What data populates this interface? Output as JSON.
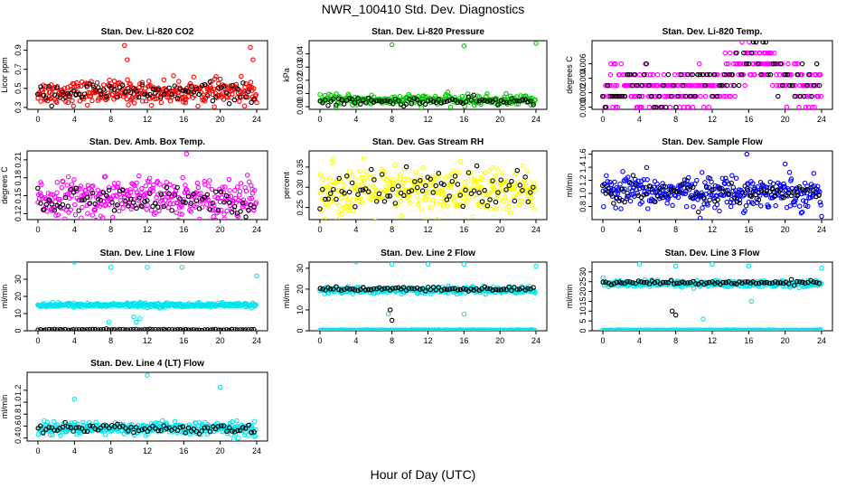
{
  "title": "NWR_100410  Std. Dev. Diagnostics",
  "xlabel": "Hour of Day (UTC)",
  "colors": {
    "red": "#ff0000",
    "green": "#00cc00",
    "magenta": "#ff00ff",
    "yellow": "#ffff00",
    "blue": "#0000ff",
    "cyan": "#00e5ee",
    "black": "#000000"
  },
  "chart_data": [
    {
      "type": "scatter",
      "title": "Stan. Dev. Li-820 CO2",
      "ylabel": "Licor ppm",
      "xlim": [
        0,
        24
      ],
      "ylim": [
        0.28,
        1.0
      ],
      "xticks": [
        0,
        4,
        8,
        12,
        16,
        20,
        24
      ],
      "yticks": [
        0.3,
        0.5,
        0.7,
        0.9
      ],
      "series": [
        {
          "color": "red",
          "base": 0.46,
          "spread": 0.06,
          "count": 320
        },
        {
          "color": "black",
          "base": 0.46,
          "spread": 0.05,
          "count": 80
        }
      ],
      "outliers": [
        {
          "x": 9.5,
          "y": 0.95,
          "color": "red"
        },
        {
          "x": 9.8,
          "y": 0.8,
          "color": "red"
        },
        {
          "x": 16.2,
          "y": 0.35,
          "color": "red"
        },
        {
          "x": 23.3,
          "y": 0.93,
          "color": "red"
        },
        {
          "x": 23.6,
          "y": 0.8,
          "color": "red"
        },
        {
          "x": 24,
          "y": 0.35,
          "color": "red"
        }
      ]
    },
    {
      "type": "scatter",
      "title": "Stan. Dev. Li-820 Pressure",
      "ylabel": "kPa",
      "xlim": [
        0,
        24
      ],
      "ylim": [
        -0.002,
        0.05
      ],
      "xticks": [
        0,
        4,
        8,
        12,
        16,
        20,
        24
      ],
      "yticks": [
        0.0,
        0.01,
        0.02,
        0.03,
        0.04
      ],
      "series": [
        {
          "color": "green",
          "base": 0.005,
          "spread": 0.002,
          "count": 260
        },
        {
          "color": "black",
          "base": 0.004,
          "spread": 0.0015,
          "count": 80
        }
      ],
      "outliers": [
        {
          "x": 8,
          "y": 0.047,
          "color": "green"
        },
        {
          "x": 16,
          "y": 0.046,
          "color": "green"
        },
        {
          "x": 24,
          "y": 0.048,
          "color": "green"
        }
      ]
    },
    {
      "type": "scatter",
      "title": "Stan. Dev. Li-820 Temp.",
      "ylabel": "degrees C",
      "xlim": [
        0,
        24
      ],
      "ylim": [
        -0.0003,
        0.0092
      ],
      "xticks": [
        0,
        4,
        8,
        12,
        16,
        20,
        24
      ],
      "yticks": [
        0.0,
        0.002,
        0.004,
        0.006
      ],
      "series": [
        {
          "color": "magenta",
          "levels": [
            0,
            0.0015,
            0.003,
            0.0045,
            0.006,
            0.0075,
            0.009
          ],
          "count": 360
        },
        {
          "color": "black",
          "levels": [
            0,
            0.0015,
            0.003,
            0.0045,
            0.006,
            0.0075,
            0.009
          ],
          "count": 90
        }
      ],
      "outliers": []
    },
    {
      "type": "scatter",
      "title": "Stan. Dev. Amb. Box Temp.",
      "ylabel": "degrees C",
      "xlim": [
        0,
        24
      ],
      "ylim": [
        0.11,
        0.225
      ],
      "xticks": [
        0,
        4,
        8,
        12,
        16,
        20,
        24
      ],
      "yticks": [
        0.12,
        0.15,
        0.18,
        0.21
      ],
      "series": [
        {
          "color": "magenta",
          "base": 0.145,
          "spread": 0.017,
          "count": 340
        },
        {
          "color": "black",
          "base": 0.14,
          "spread": 0.012,
          "count": 80
        }
      ],
      "outliers": [
        {
          "x": 16.3,
          "y": 0.22,
          "color": "magenta"
        }
      ]
    },
    {
      "type": "scatter",
      "title": "Stan. Dev. Gas Stream RH",
      "ylabel": "percent",
      "xlim": [
        0,
        24
      ],
      "ylim": [
        0.22,
        0.39
      ],
      "xticks": [
        0,
        4,
        8,
        12,
        16,
        20,
        24
      ],
      "yticks": [
        0.25,
        0.3,
        0.35
      ],
      "series": [
        {
          "color": "yellow",
          "base": 0.29,
          "spread": 0.03,
          "count": 340
        },
        {
          "color": "black",
          "base": 0.29,
          "spread": 0.025,
          "count": 80
        }
      ],
      "outliers": []
    },
    {
      "type": "scatter",
      "title": "Stan. Dev. Sample Flow",
      "ylabel": "ml/min",
      "xlim": [
        0,
        24
      ],
      "ylim": [
        0.6,
        1.65
      ],
      "xticks": [
        0,
        4,
        8,
        12,
        16,
        20,
        24
      ],
      "yticks": [
        0.8,
        1.0,
        1.2,
        1.4,
        1.6
      ],
      "series": [
        {
          "color": "blue",
          "base": 1.02,
          "spread": 0.12,
          "count": 340
        },
        {
          "color": "black",
          "base": 1.02,
          "spread": 0.09,
          "count": 80
        }
      ],
      "outliers": [
        {
          "x": 15.8,
          "y": 1.6,
          "color": "blue"
        },
        {
          "x": 24,
          "y": 0.65,
          "color": "blue"
        },
        {
          "x": 20,
          "y": 1.45,
          "color": "blue"
        }
      ]
    },
    {
      "type": "scatter",
      "title": "Stan. Dev. Line 1 Flow",
      "ylabel": "ml/min",
      "xlim": [
        0,
        24
      ],
      "ylim": [
        0,
        40
      ],
      "xticks": [
        0,
        4,
        8,
        12,
        16,
        20,
        24
      ],
      "yticks": [
        0,
        10,
        20,
        30
      ],
      "series": [
        {
          "color": "cyan",
          "base": 15,
          "spread": 0.6,
          "count": 340
        },
        {
          "color": "black",
          "base": 0.6,
          "spread": 0.15,
          "count": 80
        }
      ],
      "outliers": [
        {
          "x": 4,
          "y": 40,
          "color": "cyan"
        },
        {
          "x": 8,
          "y": 37,
          "color": "cyan"
        },
        {
          "x": 12,
          "y": 37,
          "color": "cyan"
        },
        {
          "x": 15.8,
          "y": 37,
          "color": "cyan"
        },
        {
          "x": 24,
          "y": 32,
          "color": "cyan"
        },
        {
          "x": 10.5,
          "y": 8,
          "color": "cyan"
        },
        {
          "x": 10.8,
          "y": 5,
          "color": "cyan"
        },
        {
          "x": 11.2,
          "y": 7,
          "color": "cyan"
        },
        {
          "x": 7.8,
          "y": 5,
          "color": "cyan"
        }
      ]
    },
    {
      "type": "scatter",
      "title": "Stan. Dev. Line 2 Flow",
      "ylabel": "ml/min",
      "xlim": [
        0,
        24
      ],
      "ylim": [
        0,
        33
      ],
      "xticks": [
        0,
        4,
        8,
        12,
        16,
        20,
        24
      ],
      "yticks": [
        0,
        10,
        20,
        30
      ],
      "series": [
        {
          "color": "cyan",
          "base": 19.5,
          "spread": 0.8,
          "count": 300
        },
        {
          "color": "black",
          "base": 20,
          "spread": 0.5,
          "count": 80
        },
        {
          "color": "cyan",
          "base": 0.3,
          "spread": 0.1,
          "count": 200
        }
      ],
      "outliers": [
        {
          "x": 4,
          "y": 33,
          "color": "cyan"
        },
        {
          "x": 8,
          "y": 32,
          "color": "cyan"
        },
        {
          "x": 12,
          "y": 32,
          "color": "cyan"
        },
        {
          "x": 16,
          "y": 32,
          "color": "cyan"
        },
        {
          "x": 24,
          "y": 31,
          "color": "cyan"
        },
        {
          "x": 7.8,
          "y": 10,
          "color": "black"
        },
        {
          "x": 8,
          "y": 5,
          "color": "black"
        },
        {
          "x": 16,
          "y": 8,
          "color": "cyan"
        },
        {
          "x": 7.6,
          "y": 8,
          "color": "cyan"
        }
      ]
    },
    {
      "type": "scatter",
      "title": "Stan. Dev. Line 3 Flow",
      "ylabel": "ml/min",
      "xlim": [
        0,
        24
      ],
      "ylim": [
        0,
        35
      ],
      "xticks": [
        0,
        4,
        8,
        12,
        16,
        20,
        24
      ],
      "yticks": [
        0,
        5,
        10,
        15,
        20,
        25,
        30
      ],
      "series": [
        {
          "color": "cyan",
          "base": 24,
          "spread": 0.8,
          "count": 300
        },
        {
          "color": "black",
          "base": 24.5,
          "spread": 0.5,
          "count": 80
        },
        {
          "color": "cyan",
          "base": 0.3,
          "spread": 0.1,
          "count": 200
        }
      ],
      "outliers": [
        {
          "x": 4,
          "y": 34,
          "color": "cyan"
        },
        {
          "x": 8,
          "y": 33,
          "color": "cyan"
        },
        {
          "x": 12,
          "y": 34,
          "color": "cyan"
        },
        {
          "x": 16,
          "y": 33,
          "color": "cyan"
        },
        {
          "x": 24,
          "y": 32,
          "color": "cyan"
        },
        {
          "x": 7.6,
          "y": 10,
          "color": "black"
        },
        {
          "x": 8,
          "y": 8,
          "color": "black"
        },
        {
          "x": 11,
          "y": 6,
          "color": "cyan"
        },
        {
          "x": 16.3,
          "y": 15,
          "color": "cyan"
        }
      ]
    },
    {
      "type": "scatter",
      "title": "Stan. Dev. Line 4 (LT) Flow",
      "ylabel": "ml/min",
      "xlim": [
        0,
        24
      ],
      "ylim": [
        0.35,
        1.5
      ],
      "xticks": [
        0,
        4,
        8,
        12,
        16,
        20,
        24
      ],
      "yticks": [
        0.4,
        0.6,
        0.8,
        1.0,
        1.2
      ],
      "series": [
        {
          "color": "cyan",
          "base": 0.56,
          "spread": 0.05,
          "count": 320
        },
        {
          "color": "black",
          "base": 0.56,
          "spread": 0.04,
          "count": 80
        }
      ],
      "outliers": [
        {
          "x": 4,
          "y": 1.05,
          "color": "cyan"
        },
        {
          "x": 12,
          "y": 1.45,
          "color": "cyan"
        },
        {
          "x": 20,
          "y": 1.25,
          "color": "cyan"
        },
        {
          "x": 21.5,
          "y": 0.38,
          "color": "cyan"
        },
        {
          "x": 22,
          "y": 0.4,
          "color": "cyan"
        }
      ]
    }
  ]
}
